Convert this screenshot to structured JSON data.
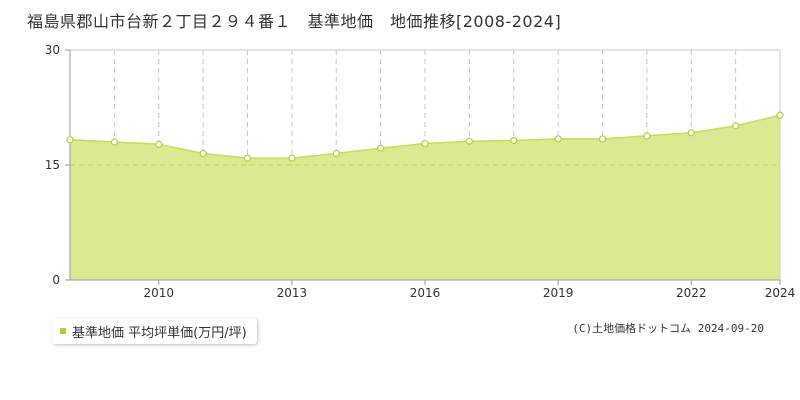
{
  "title": "福島県郡山市台新２丁目２９４番１　基準地価　地価推移[2008-2024]",
  "legend_label": "基準地価 平均坪単価(万円/坪)",
  "copyright": "(C)土地価格ドットコム 2024-09-20",
  "colors": {
    "fill": "#dde991",
    "line": "#c8dc5a",
    "marker": "#b5cf3c",
    "grid": "#c8c8c8",
    "refline": "#c0d070"
  },
  "chart_data": {
    "type": "area",
    "x": [
      2008,
      2009,
      2010,
      2011,
      2012,
      2013,
      2014,
      2015,
      2016,
      2017,
      2018,
      2019,
      2020,
      2021,
      2022,
      2023,
      2024
    ],
    "series": [
      {
        "name": "基準地価 平均坪単価(万円/坪)",
        "values": [
          18.3,
          18.0,
          17.7,
          16.5,
          15.9,
          15.9,
          16.5,
          17.2,
          17.8,
          18.1,
          18.2,
          18.4,
          18.4,
          18.8,
          19.2,
          20.1,
          21.5
        ]
      }
    ],
    "xlim": [
      2008,
      2024
    ],
    "ylim": [
      0,
      30
    ],
    "y_ticks": [
      "0",
      "15",
      "30"
    ],
    "x_tick_labels": [
      "2010",
      "2013",
      "2016",
      "2019",
      "2022",
      "2024"
    ],
    "reference_line": 15,
    "grid": true
  }
}
